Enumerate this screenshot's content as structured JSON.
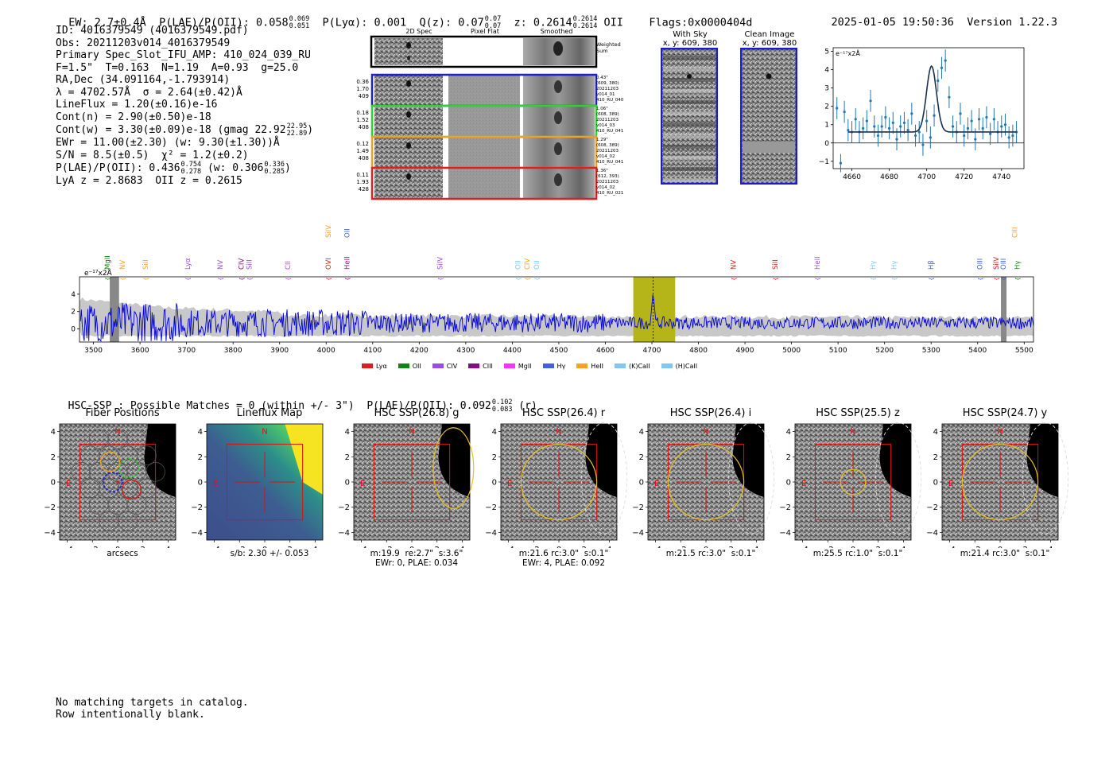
{
  "header": {
    "ew": "EW: 2.7±0.4Å",
    "plae_label": "P(LAE)/P(OII): 0.058",
    "plae_hi": "0.069",
    "plae_lo": "0.051",
    "plya": "P(Lyα): 0.001",
    "q_label": "Q(z): 0.07",
    "q_hi": "0.07",
    "q_lo": "0.07",
    "z_label": "z: 0.2614",
    "z_hi": "0.2614",
    "z_lo": "0.2614",
    "z_line": "OII",
    "flags": "Flags:0x0000404d",
    "timestamp": "2025-01-05 19:50:36",
    "version": "Version 1.22.3"
  },
  "info": {
    "id": "ID: 4016379549 (4016379549.pdf)",
    "obs": "Obs: 20211203v014_4016379549",
    "primary": "Primary Spec_Slot_IFU_AMP: 410_024_039_RU",
    "params": "F=1.5\"  T=0.163  N=1.19  A=0.93  g=25.0",
    "radec": "RA,Dec (34.091164,-1.793914)",
    "lambda": "λ = 4702.57Å  σ = 2.64(±0.42)Å",
    "lineflux": "LineFlux = 1.20(±0.16)e-16",
    "contn": "Cont(n) = 2.90(±0.50)e-18",
    "contw": "Cont(w) = 3.30(±0.09)e-18 (gmag 22.92",
    "contw_hi": "22.95",
    "contw_lo": "22.89",
    "contw_close": ")",
    "ewr": "EWr = 11.00(±2.30) (w: 9.30(±1.30))Å",
    "sn": "S/N = 8.5(±0.5)  χ² = 1.2(±0.2)",
    "plae": "P(LAE)/P(OII): 0.436",
    "plae_hi": "0.754",
    "plae_lo": "0.278",
    "plae_w": "(w: 0.306",
    "plae_w_hi": "0.336",
    "plae_w_lo": "0.285",
    "plae_w_close": ")",
    "lyaz": "LyA z = 2.8683  OII z = 0.2615"
  },
  "spec2d": {
    "col_titles": [
      "2D Spec",
      "Pixel Flat",
      "Smoothed"
    ],
    "weighted_sum": "Weighted\nSum",
    "rows": [
      {
        "left": "0.36\n1.70\n409",
        "right": "0.43\"\n(609, 380)\n20211203\nv014_01\n410_RU_040",
        "color": "#1f1fd0"
      },
      {
        "left": "0.18\n1.52\n408",
        "right": "1.06\"\n(608, 389)\n20211203\nv014_03\n410_RU_041",
        "color": "#2ed12e"
      },
      {
        "left": "0.12\n1.49\n408",
        "right": "1.29\"\n(608, 389)\n20211203\nv014_02\n410_RU_041",
        "color": "#f0a020"
      },
      {
        "left": "0.11\n1.93\n428",
        "right": "1.36\"\n(612, 393)\n20211203\nv014_02\n410_RU_021",
        "color": "#e02020"
      }
    ]
  },
  "sky_panels": [
    {
      "title": "With Sky",
      "coords": "x, y: 609, 380"
    },
    {
      "title": "Clean Image",
      "coords": "x, y: 609, 380"
    }
  ],
  "fit_plot": {
    "ylabel": "e⁻¹⁷x2Å",
    "yticks": [
      "5",
      "4",
      "3",
      "2",
      "1",
      "0",
      "−1"
    ],
    "xticks": [
      "4660",
      "4680",
      "4700",
      "4720",
      "4740"
    ]
  },
  "full_spec": {
    "ylabel": "e⁻¹⁷x2Å",
    "yticks": [
      "4",
      "2",
      "0"
    ],
    "xticks": [
      "3500",
      "3600",
      "3700",
      "3800",
      "3900",
      "4000",
      "4100",
      "4200",
      "4300",
      "4400",
      "4500",
      "4600",
      "4700",
      "4800",
      "4900",
      "5000",
      "5100",
      "5200",
      "5300",
      "5400",
      "5500"
    ],
    "legend": [
      {
        "name": "Lyα",
        "color": "#e41a1c"
      },
      {
        "name": "OII",
        "color": "#108810"
      },
      {
        "name": "CIV",
        "color": "#9a4ce8"
      },
      {
        "name": "CIII",
        "color": "#8b0a8b"
      },
      {
        "name": "MgII",
        "color": "#ff30ff"
      },
      {
        "name": "Hγ",
        "color": "#4060e8"
      },
      {
        "name": "HeII",
        "color": "#ffa020"
      },
      {
        "name": "(K)CaII",
        "color": "#80c8f0"
      },
      {
        "name": "(H)CaII",
        "color": "#80c8f0"
      }
    ],
    "lines": [
      {
        "label": "MgII",
        "wave": 3530,
        "color": "#108810",
        "row": 1
      },
      {
        "label": "NV",
        "wave": 3562,
        "color": "#ffa020",
        "row": 1
      },
      {
        "label": "SiII",
        "wave": 3612,
        "color": "#ffa020",
        "row": 1
      },
      {
        "label": "Lyα",
        "wave": 3702,
        "color": "#9a4ce8",
        "row": 1
      },
      {
        "label": "NV",
        "wave": 3772,
        "color": "#9a4ce8",
        "row": 1
      },
      {
        "label": "CIV",
        "wave": 3818,
        "color": "#8b0a8b",
        "row": 1
      },
      {
        "label": "SiII",
        "wave": 3835,
        "color": "#9a4ce8",
        "row": 1
      },
      {
        "label": "CII",
        "wave": 3918,
        "color": "#d040d0",
        "row": 1
      },
      {
        "label": "OVI",
        "wave": 4005,
        "color": "#e41a1c",
        "row": 1
      },
      {
        "label": "SiIV",
        "wave": 4005,
        "color": "#ffa020",
        "row": 0
      },
      {
        "label": "OII",
        "wave": 4045,
        "color": "#4060e8",
        "row": 0
      },
      {
        "label": "HeII",
        "wave": 4045,
        "color": "#8b0a8b",
        "row": 1
      },
      {
        "label": "SiIV",
        "wave": 4245,
        "color": "#9a4ce8",
        "row": 1
      },
      {
        "label": "OII",
        "wave": 4412,
        "color": "#80c8f0",
        "row": 1
      },
      {
        "label": "CIV",
        "wave": 4432,
        "color": "#ffa020",
        "row": 1
      },
      {
        "label": "OII",
        "wave": 4452,
        "color": "#80c8f0",
        "row": 1
      },
      {
        "label": "NV",
        "wave": 4875,
        "color": "#e41a1c",
        "row": 1
      },
      {
        "label": "SiII",
        "wave": 4965,
        "color": "#e41a1c",
        "row": 1
      },
      {
        "label": "HeII",
        "wave": 5055,
        "color": "#9a4ce8",
        "row": 1
      },
      {
        "label": "Hγ",
        "wave": 5175,
        "color": "#80c8f0",
        "row": 1
      },
      {
        "label": "Hγ",
        "wave": 5220,
        "color": "#80c8f0",
        "row": 1
      },
      {
        "label": "Hβ",
        "wave": 5300,
        "color": "#4060e8",
        "row": 1
      },
      {
        "label": "OIII",
        "wave": 5405,
        "color": "#4060e8",
        "row": 1
      },
      {
        "label": "SiIV",
        "wave": 5440,
        "color": "#e41a1c",
        "row": 1
      },
      {
        "label": "OIII",
        "wave": 5455,
        "color": "#4060e8",
        "row": 1
      },
      {
        "label": "CIII",
        "wave": 5480,
        "color": "#ffa020",
        "row": 0
      },
      {
        "label": "Hγ",
        "wave": 5485,
        "color": "#108810",
        "row": 1
      }
    ]
  },
  "hsc": {
    "summary": "HSC-SSP : Possible Matches = 0 (within +/- 3\")  P(LAE)/P(OII): 0.092",
    "summary_hi": "0.102",
    "summary_lo": "0.083",
    "summary_band": "(r)",
    "ticks_y": [
      "4",
      "2",
      "0",
      "−2",
      "−4"
    ],
    "ticks_x": [
      "−4",
      "−2",
      "0",
      "2",
      "4"
    ],
    "panels": [
      {
        "title": "Fiber Positions",
        "caption": "arcsecs"
      },
      {
        "title": "Lineflux Map",
        "caption": "s/b: 2.30 +/- 0.053"
      },
      {
        "title": "HSC SSP(26.8) g",
        "caption": "m:19.9  re:2.7\"  s:3.6\"\nEWr: 0, PLAE: 0.034"
      },
      {
        "title": "HSC SSP(26.4) r",
        "caption": "m:21.6 rc:3.0\"  s:0.1\"\nEWr: 4, PLAE: 0.092"
      },
      {
        "title": "HSC SSP(26.4) i",
        "caption": "m:21.5 rc:3.0\"  s:0.1\""
      },
      {
        "title": "HSC SSP(25.5) z",
        "caption": "m:25.5 rc:1.0\"  s:0.1\""
      },
      {
        "title": "HSC SSP(24.7) y",
        "caption": "m:21.4 rc:3.0\"  s:0.1\""
      }
    ],
    "compass_n": "N",
    "compass_e": "E"
  },
  "footer": {
    "line1": "No matching targets in catalog.",
    "line2": "Row intentionally blank."
  },
  "chart_data": [
    {
      "type": "line",
      "title": "",
      "xlabel": "",
      "ylabel": "e-17x2Å",
      "xlim": [
        4650,
        4752
      ],
      "ylim": [
        -1.4,
        5.2
      ],
      "series": [
        {
          "name": "data",
          "x": [
            4652,
            4654,
            4656,
            4658,
            4660,
            4662,
            4664,
            4666,
            4668,
            4670,
            4672,
            4674,
            4676,
            4678,
            4680,
            4682,
            4684,
            4686,
            4688,
            4690,
            4692,
            4694,
            4696,
            4698,
            4700,
            4702,
            4704,
            4706,
            4708,
            4710,
            4712,
            4714,
            4716,
            4718,
            4720,
            4722,
            4724,
            4726,
            4728,
            4730,
            4732,
            4734,
            4736,
            4738,
            4740,
            4742,
            4744,
            4746,
            4748
          ],
          "values": [
            1.9,
            -1.1,
            1.7,
            0.7,
            0.6,
            1.3,
            0.6,
            0.8,
            1.2,
            2.3,
            0.9,
            0.4,
            0.9,
            1.4,
            0.8,
            1.1,
            0.2,
            0.9,
            1.1,
            0.7,
            1.6,
            0.4,
            0.6,
            -0.1,
            1.2,
            0.3,
            1.5,
            3.4,
            4.1,
            4.5,
            2.5,
            0.9,
            0.6,
            1.6,
            0.4,
            0.8,
            1.2,
            0.2,
            1.3,
            0.8,
            1.4,
            0.5,
            1.3,
            0.6,
            0.9,
            1.0,
            0.3,
            0.4,
            0.6
          ],
          "errors": [
            0.6,
            0.5,
            0.6,
            0.6,
            0.6,
            0.6,
            0.6,
            0.6,
            0.6,
            0.6,
            0.6,
            0.6,
            0.6,
            0.6,
            0.6,
            0.6,
            0.6,
            0.6,
            0.6,
            0.6,
            0.6,
            0.6,
            0.6,
            0.6,
            0.6,
            0.6,
            0.6,
            0.6,
            0.6,
            0.6,
            0.6,
            0.6,
            0.6,
            0.6,
            0.6,
            0.6,
            0.6,
            0.6,
            0.6,
            0.6,
            0.6,
            0.6,
            0.6,
            0.6,
            0.6,
            0.6,
            0.6,
            0.6,
            0.6
          ]
        },
        {
          "name": "gaussian fit",
          "center": 4702.57,
          "sigma": 2.64,
          "peak": 3.6,
          "continuum": 0.6
        }
      ]
    },
    {
      "type": "line",
      "title": "",
      "xlabel": "",
      "ylabel": "e-17x2Å",
      "xlim": [
        3470,
        5520
      ],
      "ylim": [
        -1.5,
        6
      ],
      "highlight_range": [
        4660,
        4750
      ],
      "marked_line": 4702.57,
      "series": [
        {
          "name": "spectrum",
          "color": "#0000dd",
          "note": "noisy continuum around 0.5-1.5 with emission near 4700"
        }
      ]
    }
  ]
}
